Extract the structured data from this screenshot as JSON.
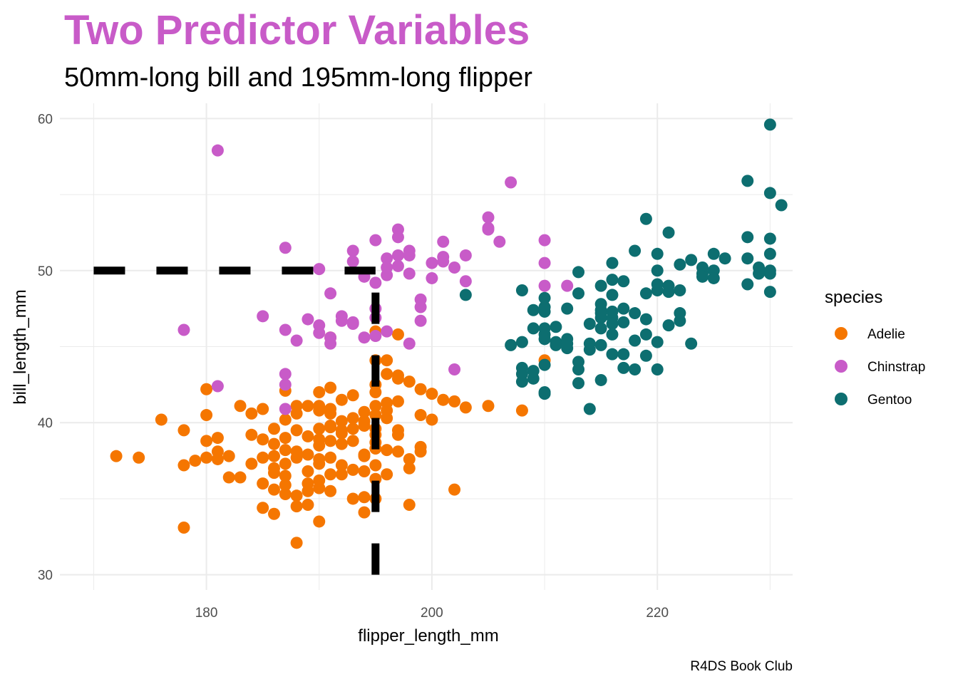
{
  "chart_data": {
    "type": "scatter",
    "title": "Two Predictor Variables",
    "subtitle": "50mm-long bill and 195mm-long flipper",
    "caption": "R4DS Book Club",
    "xlabel": "flipper_length_mm",
    "ylabel": "bill_length_mm",
    "xlim": [
      167,
      232
    ],
    "ylim": [
      29,
      61
    ],
    "x_ticks": [
      180,
      200,
      220
    ],
    "y_ticks": [
      30,
      40,
      50,
      60
    ],
    "grid": true,
    "title_color": "#C85BC8",
    "legend": {
      "title": "species",
      "position": "right"
    },
    "reference_lines": [
      {
        "kind": "horizontal",
        "y": 50,
        "x_from": 170,
        "x_to": 195,
        "style": "dashed",
        "color": "#000000"
      },
      {
        "kind": "vertical",
        "x": 195,
        "y_from": 30,
        "y_to": 50,
        "style": "dashed",
        "color": "#000000"
      }
    ],
    "series": [
      {
        "name": "Adelie",
        "color": "#F57600",
        "points": [
          [
            172,
            37.8
          ],
          [
            174,
            37.7
          ],
          [
            176,
            40.2
          ],
          [
            178,
            39.5
          ],
          [
            178,
            37.2
          ],
          [
            178,
            33.1
          ],
          [
            179,
            37.5
          ],
          [
            180,
            42.2
          ],
          [
            180,
            40.5
          ],
          [
            180,
            38.8
          ],
          [
            180,
            37.7
          ],
          [
            181,
            37.6
          ],
          [
            181,
            38.1
          ],
          [
            181,
            39.0
          ],
          [
            182,
            36.4
          ],
          [
            182,
            37.8
          ],
          [
            183,
            36.4
          ],
          [
            183,
            41.1
          ],
          [
            184,
            39.2
          ],
          [
            184,
            37.3
          ],
          [
            184,
            40.6
          ],
          [
            185,
            37.7
          ],
          [
            185,
            38.9
          ],
          [
            185,
            40.9
          ],
          [
            185,
            36.0
          ],
          [
            185,
            34.4
          ],
          [
            186,
            37.0
          ],
          [
            186,
            35.6
          ],
          [
            186,
            34.0
          ],
          [
            186,
            37.8
          ],
          [
            186,
            38.6
          ],
          [
            186,
            39.6
          ],
          [
            186,
            36.7
          ],
          [
            187,
            37.3
          ],
          [
            187,
            35.3
          ],
          [
            187,
            38.2
          ],
          [
            187,
            39.0
          ],
          [
            187,
            40.2
          ],
          [
            187,
            42.1
          ],
          [
            187,
            35.9
          ],
          [
            187,
            36.5
          ],
          [
            188,
            37.7
          ],
          [
            188,
            39.5
          ],
          [
            188,
            41.1
          ],
          [
            188,
            35.2
          ],
          [
            188,
            32.1
          ],
          [
            188,
            34.5
          ],
          [
            188,
            38.1
          ],
          [
            188,
            40.6
          ],
          [
            189,
            36.0
          ],
          [
            189,
            39.1
          ],
          [
            189,
            37.9
          ],
          [
            189,
            41.1
          ],
          [
            189,
            35.5
          ],
          [
            189,
            34.6
          ],
          [
            189,
            36.8
          ],
          [
            190,
            38.5
          ],
          [
            190,
            39.6
          ],
          [
            190,
            41.1
          ],
          [
            190,
            35.7
          ],
          [
            190,
            42.0
          ],
          [
            190,
            40.8
          ],
          [
            190,
            37.6
          ],
          [
            190,
            36.2
          ],
          [
            190,
            33.5
          ],
          [
            190,
            37.3
          ],
          [
            190,
            35.7
          ],
          [
            190,
            38.9
          ],
          [
            191,
            40.9
          ],
          [
            191,
            39.8
          ],
          [
            191,
            42.3
          ],
          [
            191,
            37.7
          ],
          [
            191,
            35.5
          ],
          [
            191,
            36.6
          ],
          [
            191,
            39.7
          ],
          [
            191,
            40.6
          ],
          [
            191,
            38.8
          ],
          [
            191,
            45.6
          ],
          [
            192,
            39.3
          ],
          [
            192,
            40.1
          ],
          [
            192,
            36.6
          ],
          [
            192,
            38.6
          ],
          [
            192,
            41.5
          ],
          [
            192,
            37.2
          ],
          [
            192,
            39.5
          ],
          [
            193,
            40.3
          ],
          [
            193,
            41.8
          ],
          [
            193,
            35.0
          ],
          [
            193,
            38.8
          ],
          [
            193,
            39.6
          ],
          [
            193,
            36.9
          ],
          [
            194,
            37.8
          ],
          [
            194,
            36.8
          ],
          [
            194,
            40.1
          ],
          [
            194,
            40.7
          ],
          [
            194,
            37.9
          ],
          [
            194,
            35.1
          ],
          [
            194,
            34.1
          ],
          [
            194,
            39.8
          ],
          [
            195,
            39.2
          ],
          [
            195,
            38.7
          ],
          [
            195,
            40.5
          ],
          [
            195,
            41.1
          ],
          [
            195,
            42.5
          ],
          [
            195,
            39.6
          ],
          [
            195,
            42.0
          ],
          [
            195,
            36.3
          ],
          [
            195,
            44.1
          ],
          [
            195,
            37.2
          ],
          [
            195,
            35.0
          ],
          [
            195,
            38.3
          ],
          [
            195,
            46.0
          ],
          [
            196,
            40.3
          ],
          [
            196,
            43.2
          ],
          [
            196,
            41.3
          ],
          [
            196,
            36.6
          ],
          [
            196,
            40.8
          ],
          [
            196,
            38.2
          ],
          [
            196,
            44.1
          ],
          [
            197,
            39.5
          ],
          [
            197,
            42.9
          ],
          [
            197,
            43.1
          ],
          [
            197,
            39.2
          ],
          [
            197,
            45.8
          ],
          [
            197,
            38.1
          ],
          [
            197,
            41.4
          ],
          [
            198,
            37.0
          ],
          [
            198,
            34.6
          ],
          [
            198,
            42.7
          ],
          [
            198,
            37.6
          ],
          [
            199,
            38.1
          ],
          [
            199,
            40.5
          ],
          [
            199,
            42.2
          ],
          [
            199,
            38.4
          ],
          [
            200,
            41.9
          ],
          [
            200,
            40.2
          ],
          [
            201,
            41.5
          ],
          [
            202,
            41.4
          ],
          [
            202,
            35.6
          ],
          [
            203,
            41.0
          ],
          [
            205,
            41.1
          ],
          [
            208,
            40.8
          ],
          [
            210,
            44.1
          ]
        ]
      },
      {
        "name": "Chinstrap",
        "color": "#C85BC8",
        "points": [
          [
            178,
            46.1
          ],
          [
            181,
            57.9
          ],
          [
            181,
            42.4
          ],
          [
            185,
            47.0
          ],
          [
            187,
            51.5
          ],
          [
            187,
            46.1
          ],
          [
            187,
            43.2
          ],
          [
            187,
            42.5
          ],
          [
            187,
            40.9
          ],
          [
            188,
            45.4
          ],
          [
            189,
            46.8
          ],
          [
            190,
            50.1
          ],
          [
            190,
            46.4
          ],
          [
            190,
            45.9
          ],
          [
            191,
            48.5
          ],
          [
            191,
            45.2
          ],
          [
            191,
            45.6
          ],
          [
            192,
            46.7
          ],
          [
            192,
            47.0
          ],
          [
            193,
            51.3
          ],
          [
            193,
            50.6
          ],
          [
            193,
            46.6
          ],
          [
            193,
            46.5
          ],
          [
            194,
            45.6
          ],
          [
            194,
            49.6
          ],
          [
            195,
            49.2
          ],
          [
            195,
            52.0
          ],
          [
            195,
            46.9
          ],
          [
            195,
            45.7
          ],
          [
            195,
            47.5
          ],
          [
            196,
            50.8
          ],
          [
            196,
            49.7
          ],
          [
            196,
            50.2
          ],
          [
            196,
            46.0
          ],
          [
            197,
            52.7
          ],
          [
            197,
            51.0
          ],
          [
            197,
            50.3
          ],
          [
            197,
            52.2
          ],
          [
            198,
            51.0
          ],
          [
            198,
            45.2
          ],
          [
            198,
            49.8
          ],
          [
            198,
            51.3
          ],
          [
            199,
            46.7
          ],
          [
            199,
            47.6
          ],
          [
            199,
            48.1
          ],
          [
            200,
            49.5
          ],
          [
            200,
            50.5
          ],
          [
            201,
            50.6
          ],
          [
            201,
            51.9
          ],
          [
            201,
            50.9
          ],
          [
            202,
            50.2
          ],
          [
            202,
            43.5
          ],
          [
            203,
            49.3
          ],
          [
            203,
            51.0
          ],
          [
            205,
            53.5
          ],
          [
            205,
            52.8
          ],
          [
            205,
            52.7
          ],
          [
            206,
            51.9
          ],
          [
            207,
            55.8
          ],
          [
            210,
            52.0
          ],
          [
            210,
            50.5
          ],
          [
            210,
            49.0
          ],
          [
            212,
            49.0
          ]
        ]
      },
      {
        "name": "Gentoo",
        "color": "#0D6E70",
        "points": [
          [
            203,
            48.4
          ],
          [
            207,
            45.1
          ],
          [
            208,
            48.7
          ],
          [
            208,
            43.6
          ],
          [
            208,
            42.7
          ],
          [
            208,
            43.2
          ],
          [
            208,
            45.3
          ],
          [
            209,
            46.2
          ],
          [
            209,
            47.4
          ],
          [
            209,
            42.9
          ],
          [
            209,
            43.4
          ],
          [
            210,
            45.8
          ],
          [
            210,
            46.2
          ],
          [
            210,
            43.8
          ],
          [
            210,
            47.3
          ],
          [
            210,
            48.2
          ],
          [
            210,
            42.0
          ],
          [
            210,
            45.5
          ],
          [
            210,
            47.6
          ],
          [
            210,
            41.9
          ],
          [
            211,
            45.1
          ],
          [
            211,
            46.3
          ],
          [
            211,
            45.3
          ],
          [
            212,
            45.5
          ],
          [
            212,
            47.5
          ],
          [
            212,
            44.9
          ],
          [
            212,
            45.2
          ],
          [
            213,
            48.5
          ],
          [
            213,
            42.6
          ],
          [
            213,
            43.5
          ],
          [
            213,
            44.0
          ],
          [
            213,
            49.9
          ],
          [
            214,
            46.5
          ],
          [
            214,
            45.2
          ],
          [
            214,
            44.8
          ],
          [
            214,
            40.9
          ],
          [
            215,
            47.8
          ],
          [
            215,
            46.9
          ],
          [
            215,
            45.1
          ],
          [
            215,
            46.2
          ],
          [
            215,
            47.4
          ],
          [
            215,
            42.8
          ],
          [
            215,
            47.2
          ],
          [
            215,
            49.0
          ],
          [
            216,
            46.5
          ],
          [
            216,
            50.5
          ],
          [
            216,
            44.5
          ],
          [
            216,
            48.4
          ],
          [
            216,
            45.8
          ],
          [
            216,
            46.9
          ],
          [
            216,
            49.4
          ],
          [
            216,
            47.3
          ],
          [
            217,
            47.5
          ],
          [
            217,
            46.6
          ],
          [
            217,
            43.6
          ],
          [
            217,
            44.5
          ],
          [
            217,
            49.3
          ],
          [
            218,
            51.3
          ],
          [
            218,
            45.4
          ],
          [
            218,
            43.5
          ],
          [
            218,
            47.2
          ],
          [
            219,
            45.8
          ],
          [
            219,
            48.5
          ],
          [
            219,
            44.4
          ],
          [
            219,
            53.4
          ],
          [
            219,
            46.8
          ],
          [
            220,
            49.1
          ],
          [
            220,
            51.1
          ],
          [
            220,
            50.0
          ],
          [
            220,
            45.3
          ],
          [
            220,
            48.7
          ],
          [
            220,
            43.5
          ],
          [
            221,
            46.4
          ],
          [
            221,
            48.6
          ],
          [
            221,
            49.0
          ],
          [
            221,
            52.5
          ],
          [
            222,
            46.7
          ],
          [
            222,
            47.2
          ],
          [
            222,
            50.4
          ],
          [
            222,
            48.7
          ],
          [
            223,
            45.2
          ],
          [
            223,
            50.7
          ],
          [
            224,
            49.8
          ],
          [
            224,
            50.2
          ],
          [
            224,
            49.6
          ],
          [
            225,
            50.0
          ],
          [
            225,
            49.5
          ],
          [
            225,
            51.1
          ],
          [
            226,
            50.8
          ],
          [
            228,
            52.2
          ],
          [
            228,
            49.1
          ],
          [
            228,
            50.8
          ],
          [
            228,
            55.9
          ],
          [
            229,
            49.8
          ],
          [
            229,
            50.2
          ],
          [
            230,
            52.1
          ],
          [
            230,
            55.1
          ],
          [
            230,
            59.6
          ],
          [
            230,
            48.6
          ],
          [
            230,
            49.8
          ],
          [
            230,
            51.1
          ],
          [
            230,
            50.0
          ],
          [
            231,
            54.3
          ]
        ]
      }
    ]
  }
}
